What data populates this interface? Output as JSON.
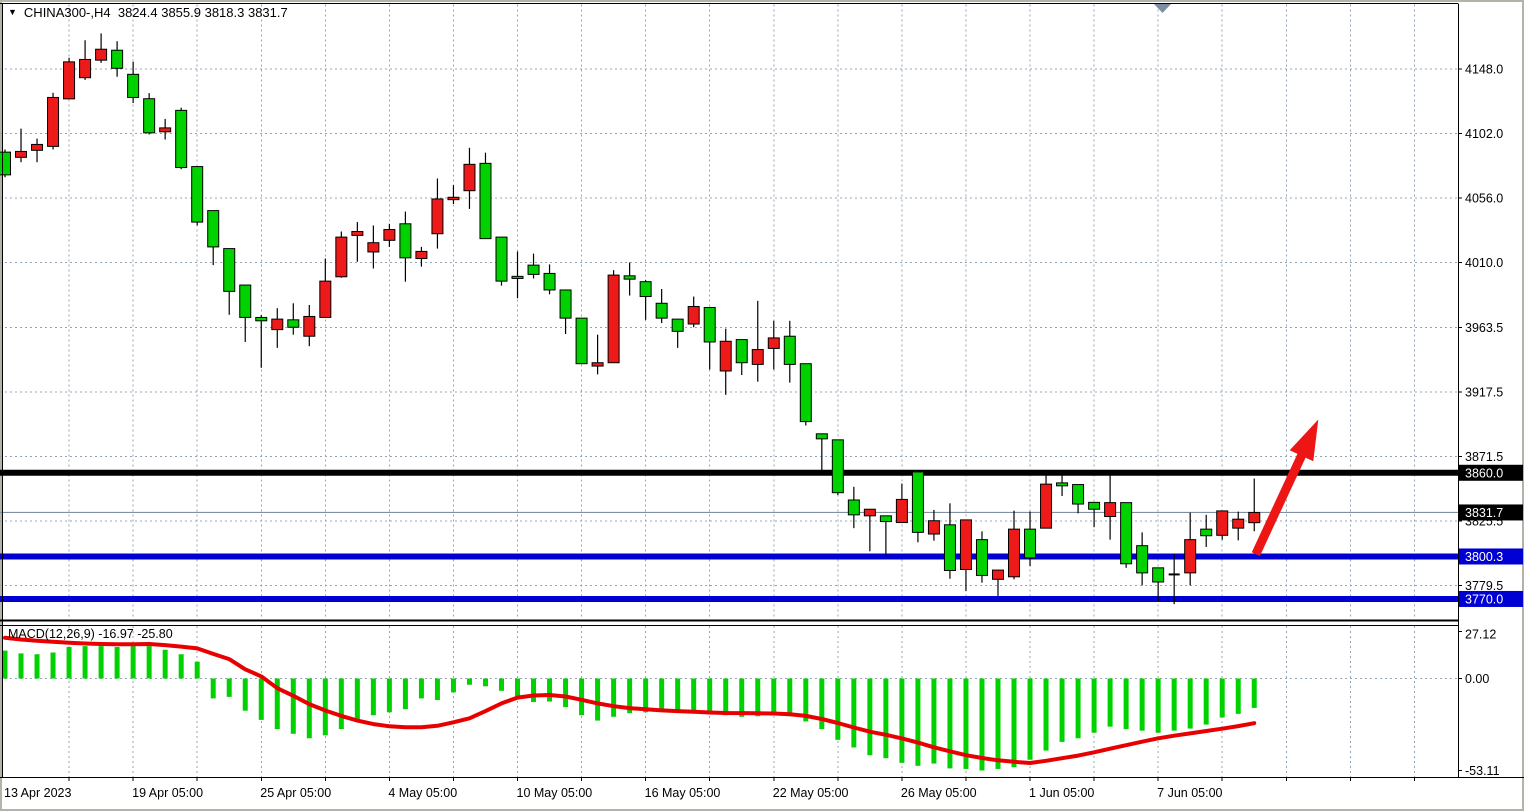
{
  "title": {
    "marker_icon": "▼",
    "text": "CHINA300-,H4  3824.4 3855.9 3818.3 3831.7"
  },
  "indicator_label": "MACD(12,26,9) -16.97 -25.80",
  "colors": {
    "background": "#ffffff",
    "up_candle": "#ee1a1a",
    "down_candle": "#00d200",
    "doji": "#000000",
    "candle_outline": "#000000",
    "histogram": "#00d200",
    "signal_line": "#e80000",
    "grid": "#95a4b4",
    "level_black": "#000000",
    "level_blue": "#0000d2",
    "price_line": "#8090a0",
    "arrow": "#ee1515",
    "axis_text": "#000000",
    "badge_text": "#ffffff",
    "scroll_marker": "#7c8ea4",
    "frame": "#000000"
  },
  "chart_data": {
    "type": "candlestick",
    "symbol": "CHINA300-",
    "timeframe": "H4",
    "ohlc_display": {
      "open": "3824.4",
      "high": "3855.9",
      "low": "3818.3",
      "close": "3831.7"
    },
    "price_ticks": [
      4148.0,
      4102.0,
      4056.0,
      4010.0,
      3963.5,
      3917.5,
      3871.5,
      3825.5,
      3779.5
    ],
    "time_labels": [
      {
        "index": 0,
        "label": "13 Apr 2023"
      },
      {
        "index": 8,
        "label": "19 Apr 05:00"
      },
      {
        "index": 16,
        "label": "25 Apr 05:00"
      },
      {
        "index": 24,
        "label": "4 May 05:00"
      },
      {
        "index": 32,
        "label": "10 May 05:00"
      },
      {
        "index": 40,
        "label": "16 May 05:00"
      },
      {
        "index": 48,
        "label": "22 May 05:00"
      },
      {
        "index": 56,
        "label": "26 May 05:00"
      },
      {
        "index": 64,
        "label": "1 Jun 05:00"
      },
      {
        "index": 72,
        "label": "7 Jun 05:00"
      }
    ],
    "levels": [
      {
        "value": 3860.0,
        "label": "3860.0",
        "style": "black"
      },
      {
        "value": 3800.3,
        "label": "3800.3",
        "style": "blue"
      },
      {
        "value": 3770.0,
        "label": "3770.0",
        "style": "blue"
      }
    ],
    "price_line": {
      "value": 3831.7,
      "label": "3831.7"
    },
    "candles": [
      [
        4088.7,
        4090.6,
        4070.8,
        4072.5
      ],
      [
        4085.0,
        4105.5,
        4081.5,
        4089.2
      ],
      [
        4090.0,
        4098.4,
        4081.5,
        4094.2
      ],
      [
        4092.8,
        4131.0,
        4090.6,
        4127.7
      ],
      [
        4126.7,
        4156.0,
        4126.7,
        4153.1
      ],
      [
        4141.8,
        4168.5,
        4140.2,
        4154.8
      ],
      [
        4154.3,
        4173.4,
        4152.4,
        4162.1
      ],
      [
        4161.4,
        4167.8,
        4142.5,
        4148.5
      ],
      [
        4144.2,
        4153.1,
        4123.7,
        4127.7
      ],
      [
        4126.8,
        4130.8,
        4101.3,
        4102.5
      ],
      [
        4103.2,
        4112.4,
        4097.7,
        4106.0
      ],
      [
        4118.5,
        4120.4,
        4076.5,
        4077.7
      ],
      [
        4078.4,
        4078.4,
        4036.4,
        4038.8
      ],
      [
        4047.0,
        4047.0,
        4008.1,
        4021.1
      ],
      [
        4019.9,
        4019.9,
        3972.7,
        3989.4
      ],
      [
        3993.9,
        3993.9,
        3953.3,
        3970.8
      ],
      [
        3970.8,
        3972.5,
        3934.9,
        3968.4
      ],
      [
        3962.1,
        3977.4,
        3949.1,
        3969.6
      ],
      [
        3969.1,
        3980.9,
        3958.5,
        3963.8
      ],
      [
        3957.4,
        3979.7,
        3950.3,
        3971.5
      ],
      [
        3970.8,
        4012.8,
        3970.8,
        3996.7
      ],
      [
        3999.8,
        4032.1,
        3999.1,
        4028.1
      ],
      [
        4029.3,
        4038.8,
        4010.5,
        4032.1
      ],
      [
        4017.5,
        4036.4,
        4005.7,
        4024.1
      ],
      [
        4025.8,
        4037.6,
        4021.1,
        4033.5
      ],
      [
        4037.6,
        4046.3,
        3996.3,
        4013.3
      ],
      [
        4012.8,
        4021.1,
        4007.0,
        4017.9
      ],
      [
        4030.5,
        4069.9,
        4019.9,
        4055.3
      ],
      [
        4054.8,
        4065.2,
        4051.7,
        4056.5
      ],
      [
        4061.2,
        4091.8,
        4048.2,
        4080.0
      ],
      [
        4080.7,
        4088.3,
        4027.0,
        4027.0
      ],
      [
        4028.1,
        4028.1,
        3993.5,
        3996.7
      ],
      [
        4000.1,
        4017.8,
        3984.5,
        3998.6
      ],
      [
        4008.1,
        4016.3,
        3998.6,
        4001.5
      ],
      [
        4002.2,
        4008.6,
        3987.3,
        3990.4
      ],
      [
        3990.4,
        3990.4,
        3959.0,
        3970.3
      ],
      [
        3970.3,
        3970.3,
        3937.8,
        3937.8
      ],
      [
        3936.1,
        3958.5,
        3930.2,
        3938.5
      ],
      [
        3938.5,
        4004.5,
        3938.5,
        4001.0
      ],
      [
        4000.5,
        4010.0,
        3986.4,
        3998.1
      ],
      [
        3996.3,
        3997.4,
        3969.1,
        3985.7
      ],
      [
        3980.9,
        3991.1,
        3966.8,
        3970.3
      ],
      [
        3969.6,
        3969.6,
        3949.1,
        3960.9
      ],
      [
        3966.1,
        3985.7,
        3963.8,
        3978.6
      ],
      [
        3977.9,
        3977.9,
        3933.7,
        3953.3
      ],
      [
        3932.6,
        3962.8,
        3915.6,
        3953.8
      ],
      [
        3955.0,
        3955.0,
        3929.7,
        3938.5
      ],
      [
        3937.3,
        3982.6,
        3925.0,
        3947.9
      ],
      [
        3948.7,
        3968.4,
        3933.7,
        3956.2
      ],
      [
        3957.4,
        3968.4,
        3924.3,
        3937.3
      ],
      [
        3937.8,
        3937.8,
        3893.7,
        3896.5
      ],
      [
        3887.8,
        3887.8,
        3859.4,
        3884.2
      ],
      [
        3883.5,
        3883.5,
        3844.1,
        3845.8
      ],
      [
        3840.6,
        3850.0,
        3820.5,
        3830.0
      ],
      [
        3829.3,
        3834.0,
        3804.0,
        3834.0
      ],
      [
        3829.3,
        3829.3,
        3800.0,
        3825.2
      ],
      [
        3824.5,
        3852.3,
        3824.5,
        3841.0
      ],
      [
        3860.6,
        3860.6,
        3810.4,
        3817.5
      ],
      [
        3816.3,
        3833.5,
        3811.6,
        3825.8
      ],
      [
        3822.9,
        3838.2,
        3784.4,
        3790.3
      ],
      [
        3791.0,
        3826.4,
        3775.7,
        3826.4
      ],
      [
        3812.3,
        3818.2,
        3781.6,
        3786.8
      ],
      [
        3784.0,
        3790.6,
        3772.2,
        3790.6
      ],
      [
        3785.8,
        3833.0,
        3784.0,
        3819.8
      ],
      [
        3819.8,
        3832.3,
        3793.4,
        3799.3
      ],
      [
        3820.5,
        3858.3,
        3820.5,
        3851.9
      ],
      [
        3852.8,
        3861.1,
        3843.4,
        3850.7
      ],
      [
        3851.6,
        3851.6,
        3831.1,
        3837.7
      ],
      [
        3838.9,
        3838.9,
        3821.2,
        3834.0
      ],
      [
        3828.8,
        3861.8,
        3812.3,
        3838.7
      ],
      [
        3838.7,
        3838.7,
        3792.2,
        3795.1
      ],
      [
        3808.0,
        3817.5,
        3779.7,
        3788.6
      ],
      [
        3792.2,
        3792.2,
        3768.6,
        3782.1
      ],
      [
        3787.5,
        3802.1,
        3766.3,
        3787.5
      ],
      [
        3788.6,
        3831.6,
        3779.7,
        3812.3
      ],
      [
        3819.8,
        3830.0,
        3807.1,
        3815.1
      ],
      [
        3815.4,
        3832.8,
        3812.3,
        3832.8
      ],
      [
        3820.5,
        3832.3,
        3811.8,
        3826.9
      ],
      [
        3824.4,
        3855.9,
        3818.3,
        3831.7
      ]
    ],
    "macd": {
      "params": "12,26,9",
      "ticks": [
        {
          "label": "27.12",
          "value": 27.12
        },
        {
          "label": "0.00",
          "value": 0
        },
        {
          "label": "-53.11",
          "value": -53.11
        }
      ],
      "last_values": {
        "macd": -16.97,
        "signal": -25.8
      },
      "histogram": [
        16.1,
        14.5,
        14.0,
        15.0,
        18.2,
        18.7,
        18.7,
        18.2,
        18.7,
        18.7,
        16.6,
        14.0,
        9.7,
        -11.5,
        -10.6,
        -18.6,
        -23.9,
        -29.2,
        -31.9,
        -34.5,
        -32.8,
        -29.2,
        -23.9,
        -21.2,
        -19.5,
        -17.7,
        -11.5,
        -12.4,
        -8.0,
        -3.6,
        -4.5,
        -7.1,
        -11.5,
        -13.6,
        -13.3,
        -16.5,
        -21.2,
        -24.3,
        -22.1,
        -20.0,
        -19.5,
        -19.0,
        -18.6,
        -19.0,
        -19.5,
        -21.2,
        -22.1,
        -21.8,
        -20.9,
        -21.8,
        -24.8,
        -29.2,
        -35.4,
        -39.8,
        -44.3,
        -46.0,
        -48.7,
        -50.4,
        -49.1,
        -51.9,
        -52.2,
        -53.11,
        -52.2,
        -51.2,
        -46.9,
        -41.6,
        -36.6,
        -34.5,
        -31.3,
        -27.8,
        -29.2,
        -30.1,
        -31.3,
        -30.1,
        -28.9,
        -26.6,
        -22.5,
        -20.4,
        -16.97
      ],
      "signal": [
        23.5,
        22.5,
        21.8,
        21.2,
        20.6,
        20.2,
        19.9,
        19.8,
        19.8,
        19.9,
        19.3,
        18.4,
        17.4,
        14.2,
        11.2,
        5.3,
        1.2,
        -5.6,
        -10.0,
        -14.8,
        -18.5,
        -21.6,
        -24.3,
        -26.3,
        -27.6,
        -28.2,
        -28.1,
        -27.3,
        -25.3,
        -23.0,
        -18.8,
        -14.4,
        -11.0,
        -9.8,
        -9.5,
        -10.4,
        -12.3,
        -14.4,
        -16.0,
        -17.1,
        -17.8,
        -18.4,
        -18.8,
        -19.2,
        -19.6,
        -19.9,
        -20.0,
        -20.1,
        -20.2,
        -20.6,
        -21.6,
        -23.4,
        -25.7,
        -28.3,
        -30.7,
        -32.5,
        -34.6,
        -37.0,
        -39.7,
        -42.0,
        -44.3,
        -45.9,
        -47.2,
        -48.1,
        -48.8,
        -47.5,
        -46.0,
        -44.5,
        -42.6,
        -40.5,
        -38.5,
        -36.5,
        -34.5,
        -33.0,
        -31.7,
        -30.3,
        -29.0,
        -27.5,
        -25.8
      ]
    },
    "arrow_annotation": {
      "from": {
        "index": 78.1,
        "price": 3802
      },
      "to": {
        "index": 82.0,
        "price": 3898
      }
    }
  }
}
